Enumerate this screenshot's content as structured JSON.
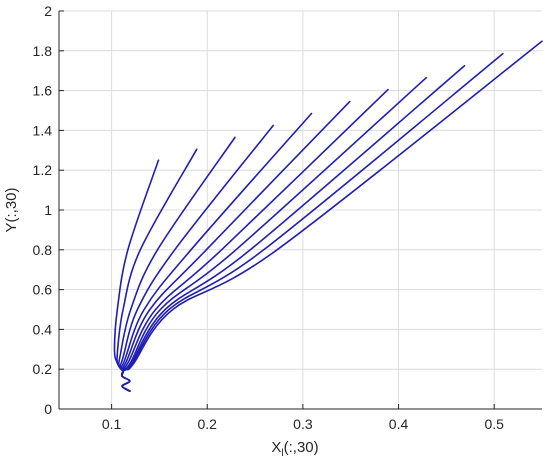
{
  "chart_data": {
    "type": "line",
    "title": "",
    "xlabel_main": "X",
    "xlabel_sub": "l",
    "xlabel_rest": "(:,30)",
    "ylabel": "Y(:,30)",
    "xlim": [
      0.045,
      0.55
    ],
    "ylim": [
      0,
      2
    ],
    "grid": true,
    "line_color": "#1f1fb4",
    "xticks": [
      0.1,
      0.2,
      0.3,
      0.4,
      0.5
    ],
    "xtick_labels": [
      "0.1",
      "0.2",
      "0.3",
      "0.4",
      "0.5"
    ],
    "yticks": [
      0,
      0.2,
      0.4,
      0.6,
      0.8,
      1,
      1.2,
      1.4,
      1.6,
      1.8,
      2
    ],
    "ytick_labels": [
      "0",
      "0.2",
      "0.4",
      "0.6",
      "0.8",
      "1",
      "1.2",
      "1.4",
      "1.6",
      "1.8",
      "2"
    ],
    "series": [
      {
        "x": [
          0.119,
          0.111,
          0.119,
          0.111,
          0.112,
          0.106,
          0.103,
          0.106,
          0.117,
          0.149
        ],
        "y": [
          0.09,
          0.115,
          0.14,
          0.165,
          0.19,
          0.23,
          0.3,
          0.5,
          0.8,
          1.25
        ]
      },
      {
        "x": [
          0.119,
          0.111,
          0.119,
          0.111,
          0.112,
          0.107,
          0.106,
          0.112,
          0.13,
          0.189
        ],
        "y": [
          0.09,
          0.115,
          0.14,
          0.165,
          0.19,
          0.22,
          0.28,
          0.5,
          0.8,
          1.305
        ]
      },
      {
        "x": [
          0.119,
          0.111,
          0.119,
          0.111,
          0.112,
          0.108,
          0.109,
          0.12,
          0.148,
          0.229
        ],
        "y": [
          0.09,
          0.115,
          0.14,
          0.165,
          0.19,
          0.215,
          0.27,
          0.5,
          0.8,
          1.365
        ]
      },
      {
        "x": [
          0.119,
          0.111,
          0.119,
          0.111,
          0.112,
          0.109,
          0.112,
          0.127,
          0.166,
          0.269
        ],
        "y": [
          0.09,
          0.115,
          0.14,
          0.165,
          0.19,
          0.21,
          0.26,
          0.5,
          0.8,
          1.425
        ]
      },
      {
        "x": [
          0.119,
          0.111,
          0.119,
          0.111,
          0.112,
          0.11,
          0.114,
          0.134,
          0.183,
          0.309
        ],
        "y": [
          0.09,
          0.115,
          0.14,
          0.165,
          0.19,
          0.205,
          0.25,
          0.5,
          0.8,
          1.485
        ]
      },
      {
        "x": [
          0.119,
          0.111,
          0.119,
          0.111,
          0.112,
          0.111,
          0.116,
          0.14,
          0.199,
          0.349
        ],
        "y": [
          0.09,
          0.115,
          0.14,
          0.165,
          0.19,
          0.2,
          0.245,
          0.5,
          0.8,
          1.545
        ]
      },
      {
        "x": [
          0.119,
          0.111,
          0.119,
          0.111,
          0.112,
          0.112,
          0.118,
          0.146,
          0.215,
          0.389
        ],
        "y": [
          0.09,
          0.115,
          0.14,
          0.165,
          0.19,
          0.2,
          0.24,
          0.5,
          0.8,
          1.605
        ]
      },
      {
        "x": [
          0.119,
          0.111,
          0.119,
          0.111,
          0.112,
          0.113,
          0.12,
          0.151,
          0.23,
          0.429
        ],
        "y": [
          0.09,
          0.115,
          0.14,
          0.165,
          0.19,
          0.2,
          0.235,
          0.5,
          0.8,
          1.665
        ]
      },
      {
        "x": [
          0.119,
          0.111,
          0.119,
          0.111,
          0.112,
          0.114,
          0.121,
          0.156,
          0.245,
          0.469
        ],
        "y": [
          0.09,
          0.115,
          0.14,
          0.165,
          0.19,
          0.2,
          0.232,
          0.5,
          0.8,
          1.725
        ]
      },
      {
        "x": [
          0.119,
          0.111,
          0.119,
          0.111,
          0.112,
          0.115,
          0.122,
          0.16,
          0.259,
          0.509
        ],
        "y": [
          0.09,
          0.115,
          0.14,
          0.165,
          0.19,
          0.2,
          0.23,
          0.5,
          0.8,
          1.785
        ]
      },
      {
        "x": [
          0.119,
          0.111,
          0.119,
          0.111,
          0.112,
          0.116,
          0.123,
          0.164,
          0.273,
          0.55
        ],
        "y": [
          0.09,
          0.115,
          0.14,
          0.165,
          0.19,
          0.2,
          0.228,
          0.5,
          0.8,
          1.848
        ]
      }
    ]
  }
}
